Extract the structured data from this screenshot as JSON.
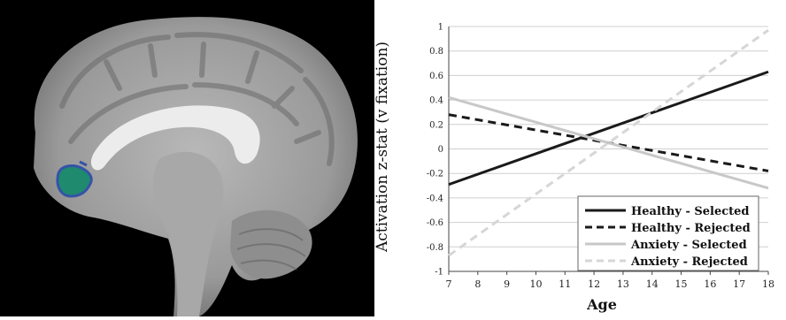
{
  "figure": {
    "brain_panel": "brain-image",
    "roi_color": "#1f8a6e",
    "roi_outline_color": "#3553a8"
  },
  "chart_data": {
    "type": "line",
    "title": "",
    "xlabel": "Age",
    "ylabel": "Activation z-stat (v fixation)",
    "xlim": [
      7,
      18
    ],
    "ylim": [
      -1,
      1
    ],
    "x_ticks": [
      "7",
      "8",
      "9",
      "10",
      "11",
      "12",
      "13",
      "14",
      "15",
      "16",
      "17",
      "18"
    ],
    "y_ticks": [
      "-1",
      "-0.8",
      "-0.6",
      "-0.4",
      "-0.2",
      "0",
      "0.2",
      "0.4",
      "0.6",
      "0.8",
      "1"
    ],
    "grid": true,
    "legend_position": "bottom-right",
    "series": [
      {
        "name": "Healthy - Selected",
        "x": [
          7,
          18
        ],
        "y": [
          -0.29,
          0.63
        ],
        "color": "#1a1a1a",
        "dash": "solid"
      },
      {
        "name": "Healthy - Rejected",
        "x": [
          7,
          18
        ],
        "y": [
          0.28,
          -0.18
        ],
        "color": "#1a1a1a",
        "dash": "dashed"
      },
      {
        "name": "Anxiety - Selected",
        "x": [
          7,
          18
        ],
        "y": [
          0.42,
          -0.32
        ],
        "color": "#c8c8c8",
        "dash": "solid"
      },
      {
        "name": "Anxiety - Rejected",
        "x": [
          7,
          18
        ],
        "y": [
          -0.87,
          0.97
        ],
        "color": "#d6d6d6",
        "dash": "dashed"
      }
    ]
  }
}
